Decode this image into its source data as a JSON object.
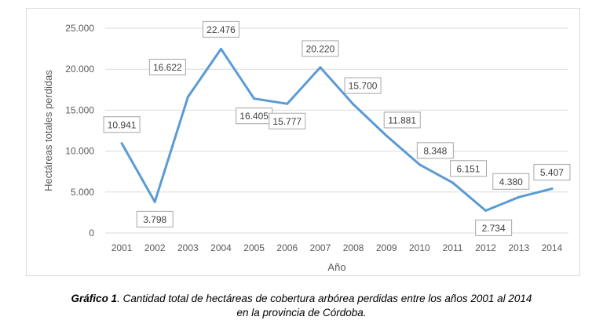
{
  "chart_data": {
    "type": "line",
    "xlabel": "Año",
    "ylabel": "Hectáreas totales perdidas",
    "ylim": [
      0,
      25000
    ],
    "yticks": [
      0,
      5000,
      10000,
      15000,
      20000,
      25000
    ],
    "ytick_labels": [
      "0",
      "5.000",
      "10.000",
      "15.000",
      "20.000",
      "25.000"
    ],
    "grid": true,
    "legend": "none",
    "line_color": "#5b9bd5",
    "categories": [
      "2001",
      "2002",
      "2003",
      "2004",
      "2005",
      "2006",
      "2007",
      "2008",
      "2009",
      "2010",
      "2011",
      "2012",
      "2013",
      "2014"
    ],
    "values": [
      10941,
      3798,
      16622,
      22476,
      16405,
      15777,
      20220,
      15700,
      11881,
      8348,
      6151,
      2734,
      4380,
      5407
    ],
    "data_labels": [
      "10.941",
      "3.798",
      "16.622",
      "22.476",
      "16.405",
      "15.777",
      "20.220",
      "15.700",
      "11.881",
      "8.348",
      "6.151",
      "2.734",
      "4.380",
      "5.407"
    ]
  },
  "caption": {
    "lead": "Gráfico 1",
    "text": ". Cantidad total de hectáreas de cobertura arbórea perdidas entre los años 2001 al 2014",
    "line2": "en la provincia de Córdoba."
  }
}
